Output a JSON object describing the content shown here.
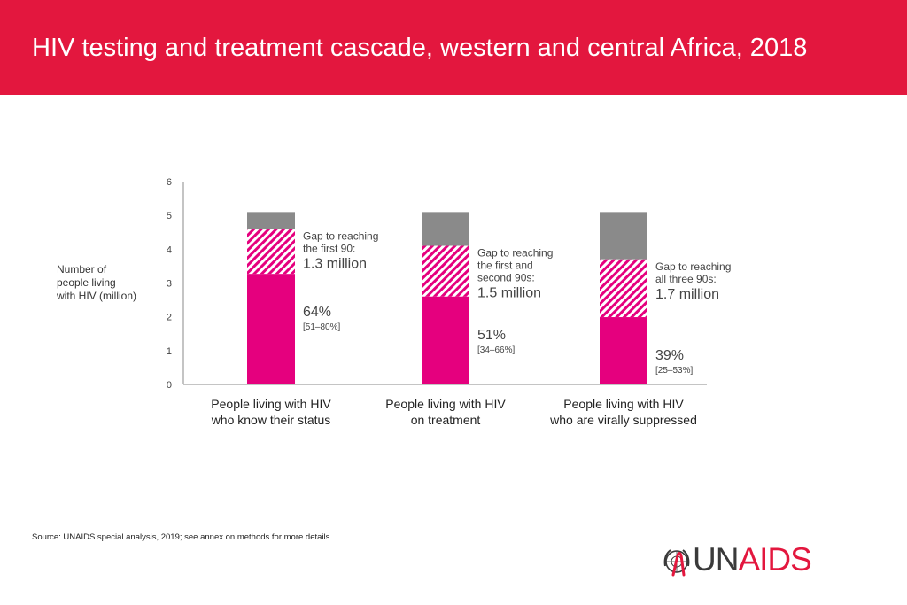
{
  "header": {
    "title": "HIV testing and treatment cascade, western and central Africa, 2018"
  },
  "colors": {
    "header": "#e3173e",
    "bar": "#e5007e",
    "gap": "#8a8a8a",
    "hatch": "#e5007e"
  },
  "chart_data": {
    "type": "bar",
    "stacked": true,
    "ylabel": "Number of people living with HIV (million)",
    "ylim": [
      0,
      6
    ],
    "yticks": [
      "0",
      "1",
      "2",
      "3",
      "4",
      "5",
      "6"
    ],
    "total_plhiv": 5.1,
    "categories": [
      "People living with HIV who know their status",
      "People living with HIV on treatment",
      "People living with HIV who are virally suppressed"
    ],
    "category_lines": [
      [
        "People living with HIV",
        "who know their status"
      ],
      [
        "People living with HIV",
        "on treatment"
      ],
      [
        "People living with HIV",
        "who are virally suppressed"
      ]
    ],
    "values": [
      3.27,
      2.6,
      1.99
    ],
    "target": [
      4.6,
      4.1,
      3.7
    ],
    "bars": [
      {
        "pct": "64%",
        "range": "[51–80%]",
        "gap_lines": [
          "Gap to reaching",
          "the first 90:"
        ],
        "gap_value": "1.3 million"
      },
      {
        "pct": "51%",
        "range": "[34–66%]",
        "gap_lines": [
          "Gap to reaching",
          "the first and",
          "second 90s:"
        ],
        "gap_value": "1.5 million"
      },
      {
        "pct": "39%",
        "range": "[25–53%]",
        "gap_lines": [
          "Gap to reaching",
          "all three 90s:"
        ],
        "gap_value": "1.7 million"
      }
    ]
  },
  "footer": {
    "source_label": "Source:",
    "source_text": " UNAIDS special analysis, 2019; see annex on methods for more details."
  },
  "logo": {
    "un": "UN",
    "aids": "AIDS"
  }
}
